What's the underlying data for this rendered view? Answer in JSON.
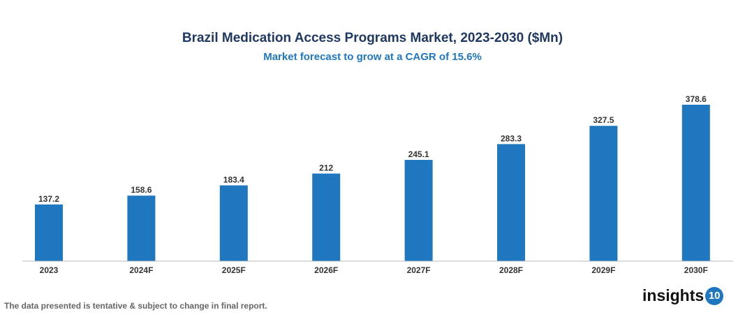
{
  "chart_data": {
    "type": "bar",
    "title": "Brazil Medication Access Programs Market, 2023-2030 ($Mn)",
    "subtitle": "Market forecast to grow at a CAGR of 15.6%",
    "categories": [
      "2023",
      "2024F",
      "2025F",
      "2026F",
      "2027F",
      "2028F",
      "2029F",
      "2030F"
    ],
    "values": [
      137.2,
      158.6,
      183.4,
      212,
      245.1,
      283.3,
      327.5,
      378.6
    ],
    "value_labels": [
      "137.2",
      "158.6",
      "183.4",
      "212",
      "245.1",
      "283.3",
      "327.5",
      "378.6"
    ],
    "xlabel": "",
    "ylabel": "",
    "grid": false,
    "bar_color": "#1f77c0"
  },
  "footer": {
    "note": "The data presented is tentative & subject to change in final report.",
    "logo_text": "insights",
    "logo_badge": "10"
  }
}
